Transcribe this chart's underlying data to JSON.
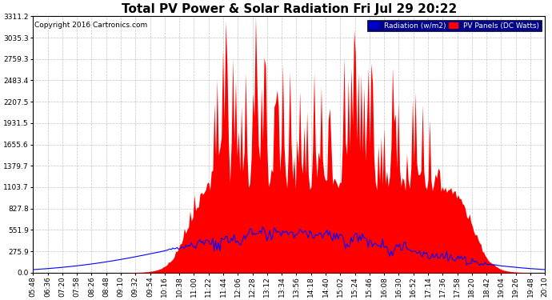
{
  "title": "Total PV Power & Solar Radiation Fri Jul 29 20:22",
  "copyright": "Copyright 2016 Cartronics.com",
  "legend_radiation": "Radiation (w/m2)",
  "legend_pv": "PV Panels (DC Watts)",
  "ymax": 3311.2,
  "yticks": [
    0.0,
    275.9,
    551.9,
    827.8,
    1103.7,
    1379.7,
    1655.6,
    1931.5,
    2207.5,
    2483.4,
    2759.3,
    3035.3,
    3311.2
  ],
  "background_color": "#ffffff",
  "plot_bg_color": "#ffffff",
  "grid_color": "#aaaaaa",
  "pv_fill_color": "#ff0000",
  "radiation_line_color": "#0000ff",
  "title_fontsize": 11,
  "tick_fontsize": 6.5,
  "num_points": 360,
  "xtick_labels": [
    "05:48",
    "06:36",
    "07:20",
    "07:58",
    "08:26",
    "08:48",
    "09:10",
    "09:32",
    "09:54",
    "10:16",
    "10:38",
    "11:00",
    "11:22",
    "11:44",
    "12:06",
    "12:28",
    "13:12",
    "13:34",
    "13:56",
    "14:18",
    "14:40",
    "15:02",
    "15:24",
    "15:46",
    "16:08",
    "16:30",
    "16:52",
    "17:14",
    "17:36",
    "17:58",
    "18:20",
    "18:42",
    "19:04",
    "19:26",
    "19:48",
    "20:10"
  ]
}
